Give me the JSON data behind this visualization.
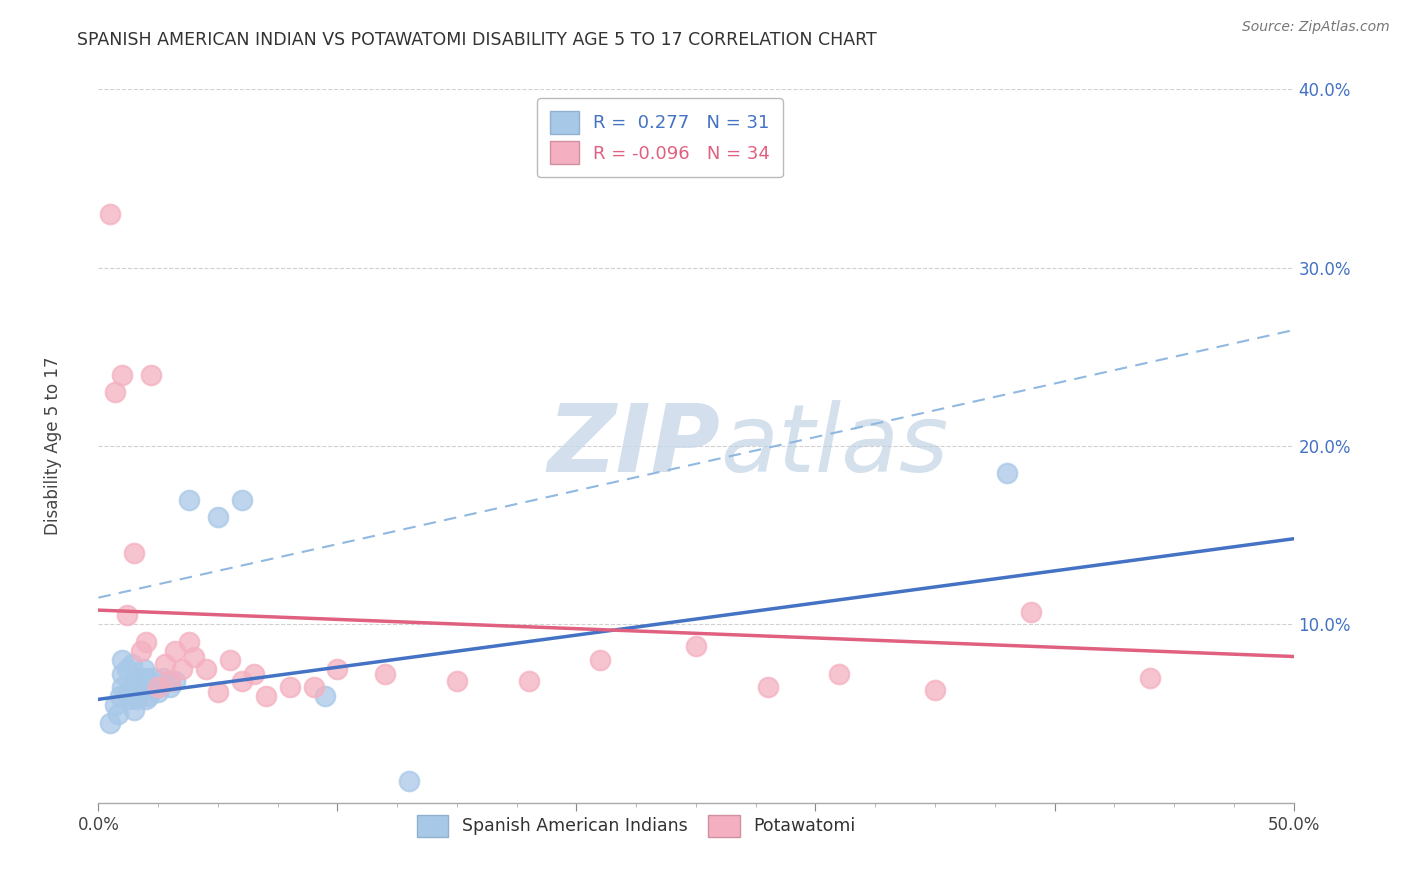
{
  "title": "SPANISH AMERICAN INDIAN VS POTAWATOMI DISABILITY AGE 5 TO 17 CORRELATION CHART",
  "source": "Source: ZipAtlas.com",
  "ylabel": "Disability Age 5 to 17",
  "R_blue": 0.277,
  "N_blue": 31,
  "R_pink": -0.096,
  "N_pink": 34,
  "xlim": [
    0.0,
    0.5
  ],
  "ylim": [
    0.0,
    0.4
  ],
  "xticks": [
    0.0,
    0.1,
    0.2,
    0.3,
    0.4,
    0.5
  ],
  "yticks": [
    0.0,
    0.1,
    0.2,
    0.3,
    0.4
  ],
  "xticklabels": [
    "0.0%",
    "",
    "",
    "",
    "",
    "50.0%"
  ],
  "yticklabels_right": [
    "",
    "10.0%",
    "20.0%",
    "30.0%",
    "40.0%"
  ],
  "blue_scatter_color": "#a8c8e8",
  "pink_scatter_color": "#f4b0c0",
  "blue_line_color": "#4472c4",
  "pink_line_color": "#e06080",
  "blue_dash_color": "#90b8e0",
  "watermark_zip_color": "#c8d8e8",
  "watermark_atlas_color": "#b8cce0",
  "legend_labels": [
    "Spanish American Indians",
    "Potawatomi"
  ],
  "blue_x": [
    0.005,
    0.007,
    0.008,
    0.009,
    0.01,
    0.01,
    0.01,
    0.012,
    0.012,
    0.013,
    0.014,
    0.015,
    0.015,
    0.016,
    0.017,
    0.018,
    0.019,
    0.02,
    0.02,
    0.021,
    0.023,
    0.025,
    0.027,
    0.03,
    0.032,
    0.038,
    0.05,
    0.06,
    0.095,
    0.13,
    0.38
  ],
  "blue_y": [
    0.045,
    0.055,
    0.05,
    0.06,
    0.065,
    0.072,
    0.08,
    0.062,
    0.075,
    0.058,
    0.078,
    0.052,
    0.068,
    0.058,
    0.07,
    0.065,
    0.075,
    0.058,
    0.07,
    0.06,
    0.07,
    0.062,
    0.07,
    0.065,
    0.068,
    0.17,
    0.16,
    0.17,
    0.06,
    0.012,
    0.185
  ],
  "pink_x": [
    0.005,
    0.007,
    0.01,
    0.012,
    0.015,
    0.018,
    0.02,
    0.022,
    0.025,
    0.028,
    0.03,
    0.032,
    0.035,
    0.038,
    0.04,
    0.045,
    0.05,
    0.055,
    0.06,
    0.065,
    0.07,
    0.08,
    0.09,
    0.1,
    0.12,
    0.15,
    0.18,
    0.21,
    0.25,
    0.28,
    0.31,
    0.35,
    0.39,
    0.44
  ],
  "pink_y": [
    0.33,
    0.23,
    0.24,
    0.105,
    0.14,
    0.085,
    0.09,
    0.24,
    0.065,
    0.078,
    0.068,
    0.085,
    0.075,
    0.09,
    0.082,
    0.075,
    0.062,
    0.08,
    0.068,
    0.072,
    0.06,
    0.065,
    0.065,
    0.075,
    0.072,
    0.068,
    0.068,
    0.08,
    0.088,
    0.065,
    0.072,
    0.063,
    0.107,
    0.07
  ],
  "blue_trend_x0": 0.0,
  "blue_trend_x1": 0.5,
  "blue_trend_y0": 0.058,
  "blue_trend_y1": 0.148,
  "pink_trend_x0": 0.0,
  "pink_trend_x1": 0.5,
  "pink_trend_y0": 0.108,
  "pink_trend_y1": 0.082,
  "dash_trend_x0": 0.0,
  "dash_trend_x1": 0.5,
  "dash_trend_y0": 0.115,
  "dash_trend_y1": 0.265
}
